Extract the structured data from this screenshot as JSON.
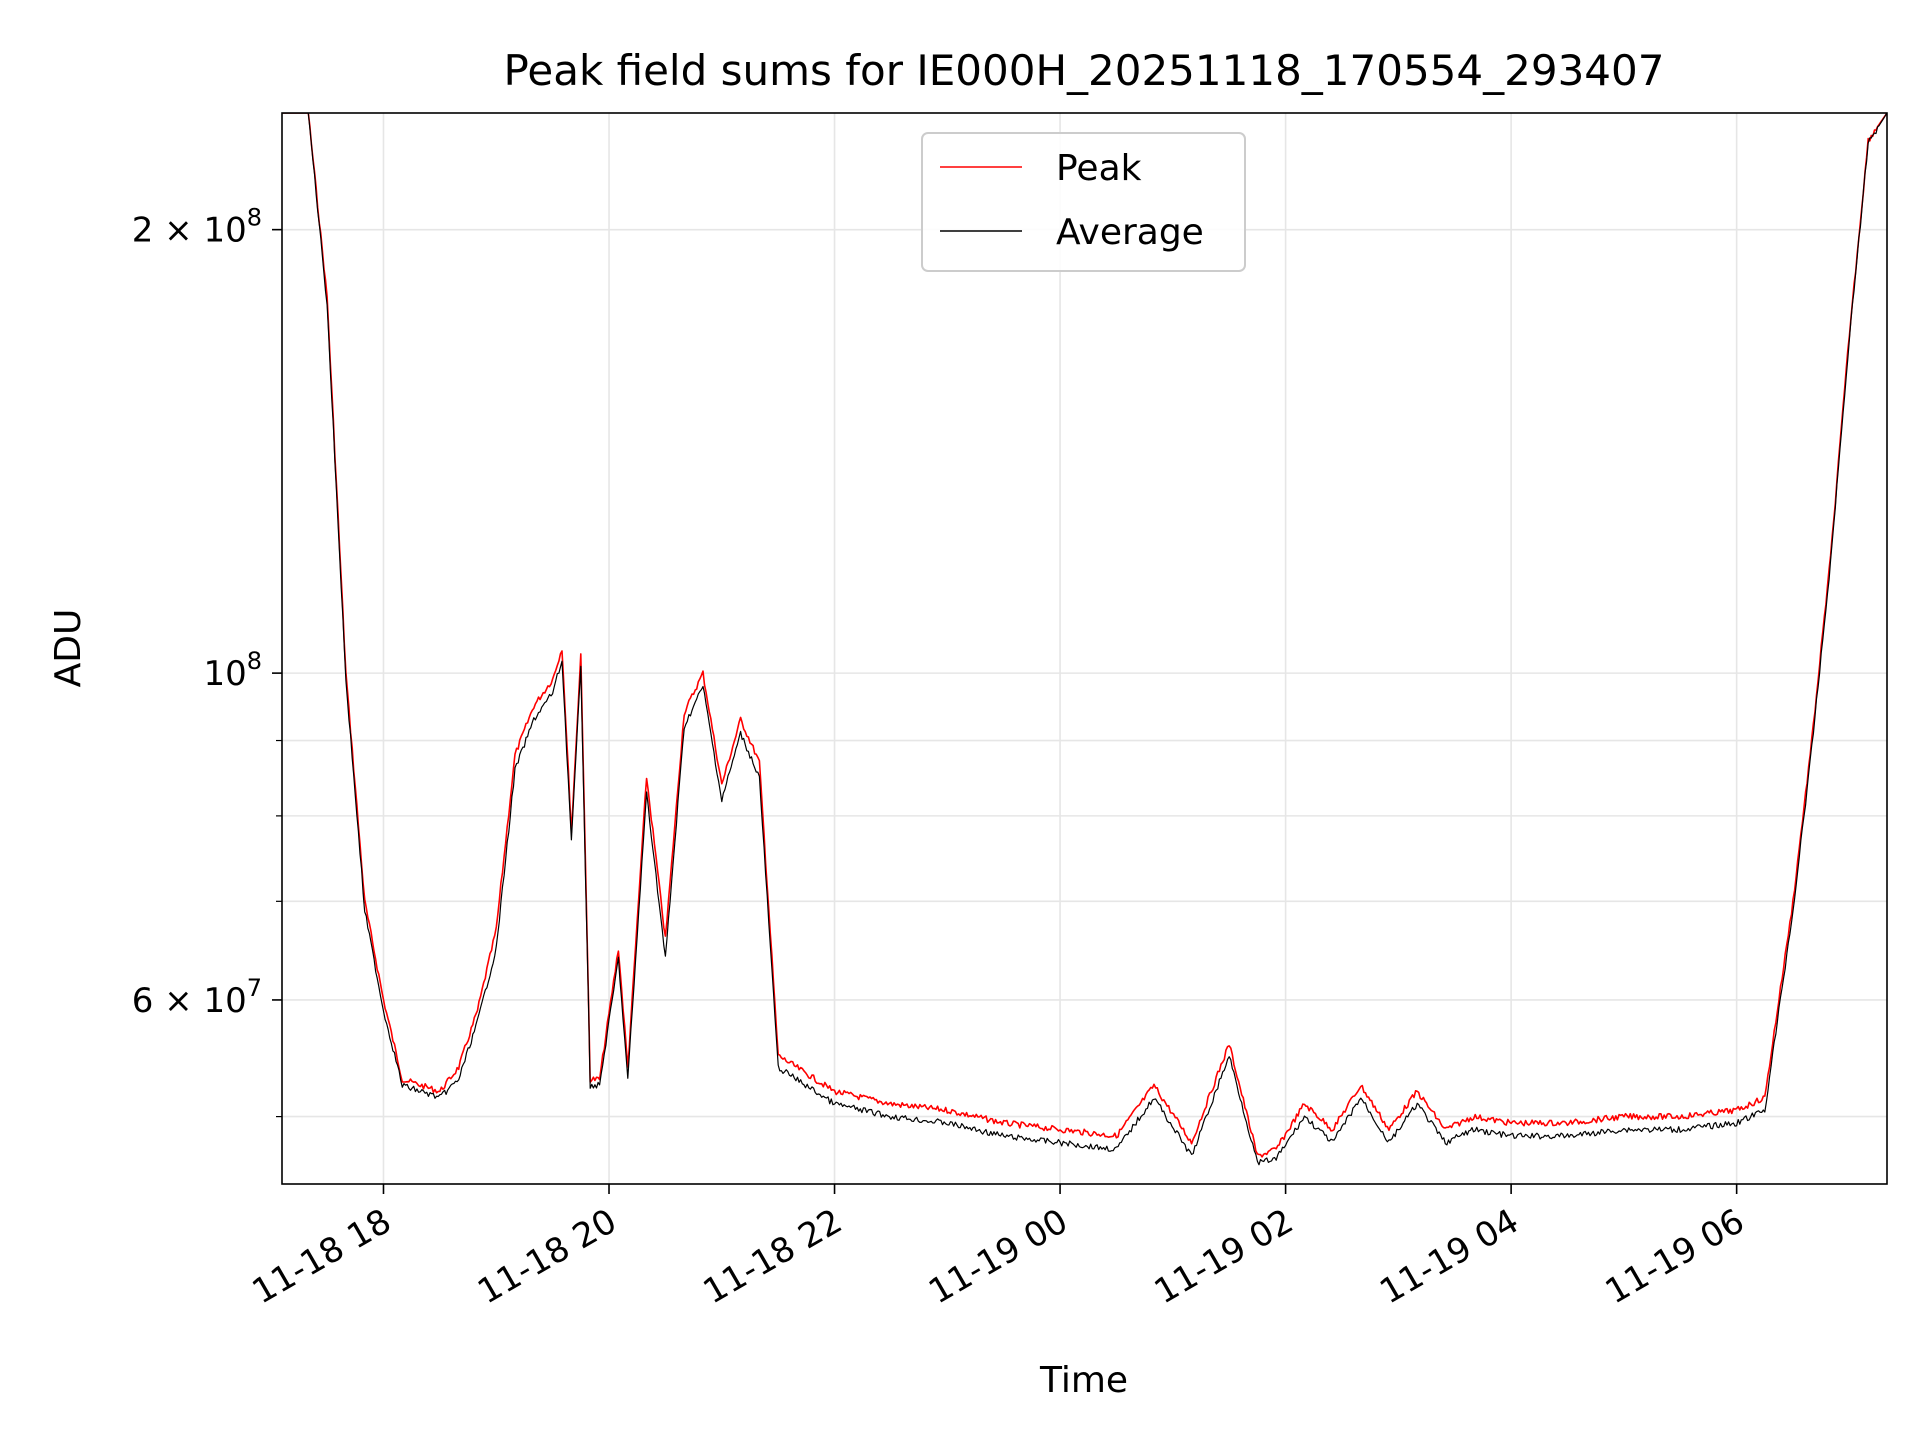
{
  "chart_data": {
    "type": "line",
    "title": "Peak field sums for IE000H_20251118_170554_293407",
    "xlabel": "Time",
    "ylabel": "ADU",
    "y_scale": "log",
    "ylim": [
      45000000,
      240000000
    ],
    "xlim": [
      "2025-11-18 17:06",
      "2025-11-19 07:20"
    ],
    "grid": true,
    "legend_position": "top-center",
    "x_ticks": [
      {
        "value": "2025-11-18 18:00",
        "label": "11-18 18"
      },
      {
        "value": "2025-11-18 20:00",
        "label": "11-18 20"
      },
      {
        "value": "2025-11-18 22:00",
        "label": "11-18 22"
      },
      {
        "value": "2025-11-19 00:00",
        "label": "11-19 00"
      },
      {
        "value": "2025-11-19 02:00",
        "label": "11-19 02"
      },
      {
        "value": "2025-11-19 04:00",
        "label": "11-19 04"
      },
      {
        "value": "2025-11-19 06:00",
        "label": "11-19 06"
      }
    ],
    "y_major_ticks": [
      {
        "value": 200000000,
        "base": "2 × 10",
        "exp": "8"
      },
      {
        "value": 100000000,
        "base": "10",
        "exp": "8"
      },
      {
        "value": 60000000,
        "base": "6 × 10",
        "exp": "7"
      }
    ],
    "y_minor_ticks": [
      50000000,
      70000000,
      80000000,
      90000000
    ],
    "series": [
      {
        "name": "Peak",
        "color": "#ff0000",
        "x": [
          "2025-11-18 17:06",
          "2025-11-18 17:20",
          "2025-11-18 17:30",
          "2025-11-18 17:40",
          "2025-11-18 17:50",
          "2025-11-18 18:00",
          "2025-11-18 18:10",
          "2025-11-18 18:30",
          "2025-11-18 18:40",
          "2025-11-18 18:50",
          "2025-11-18 19:00",
          "2025-11-18 19:10",
          "2025-11-18 19:20",
          "2025-11-18 19:30",
          "2025-11-18 19:35",
          "2025-11-18 19:40",
          "2025-11-18 19:45",
          "2025-11-18 19:50",
          "2025-11-18 19:55",
          "2025-11-18 20:05",
          "2025-11-18 20:10",
          "2025-11-18 20:20",
          "2025-11-18 20:30",
          "2025-11-18 20:40",
          "2025-11-18 20:50",
          "2025-11-18 21:00",
          "2025-11-18 21:10",
          "2025-11-18 21:20",
          "2025-11-18 21:30",
          "2025-11-18 22:00",
          "2025-11-18 22:30",
          "2025-11-18 23:00",
          "2025-11-18 23:30",
          "2025-11-19 00:00",
          "2025-11-19 00:30",
          "2025-11-19 00:50",
          "2025-11-19 01:10",
          "2025-11-19 01:30",
          "2025-11-19 01:45",
          "2025-11-19 01:55",
          "2025-11-19 02:10",
          "2025-11-19 02:25",
          "2025-11-19 02:40",
          "2025-11-19 02:55",
          "2025-11-19 03:10",
          "2025-11-19 03:25",
          "2025-11-19 03:40",
          "2025-11-19 04:00",
          "2025-11-19 04:30",
          "2025-11-19 05:00",
          "2025-11-19 05:30",
          "2025-11-19 06:00",
          "2025-11-19 06:15",
          "2025-11-19 06:30",
          "2025-11-19 06:40",
          "2025-11-19 06:50",
          "2025-11-19 07:00",
          "2025-11-19 07:10",
          "2025-11-19 07:20"
        ],
        "y": [
          240000000,
          240000000,
          180000000,
          100000000,
          70000000,
          60000000,
          53000000,
          52000000,
          54000000,
          59000000,
          67000000,
          88000000,
          95000000,
          99000000,
          104000000,
          78000000,
          103000000,
          53000000,
          53000000,
          65000000,
          54000000,
          85000000,
          66000000,
          94000000,
          100000000,
          84000000,
          93000000,
          87000000,
          55000000,
          52000000,
          51000000,
          50500000,
          49500000,
          49000000,
          48500000,
          52500000,
          48000000,
          56000000,
          47000000,
          47500000,
          51000000,
          49000000,
          52500000,
          49000000,
          52000000,
          49000000,
          50000000,
          49500000,
          49500000,
          50000000,
          50000000,
          50500000,
          51500000,
          70000000,
          90000000,
          120000000,
          170000000,
          230000000,
          240000000
        ]
      },
      {
        "name": "Average",
        "color": "#000000",
        "x": [
          "2025-11-18 17:06",
          "2025-11-18 17:20",
          "2025-11-18 17:30",
          "2025-11-18 17:40",
          "2025-11-18 17:50",
          "2025-11-18 18:00",
          "2025-11-18 18:10",
          "2025-11-18 18:30",
          "2025-11-18 18:40",
          "2025-11-18 18:50",
          "2025-11-18 19:00",
          "2025-11-18 19:10",
          "2025-11-18 19:20",
          "2025-11-18 19:30",
          "2025-11-18 19:35",
          "2025-11-18 19:40",
          "2025-11-18 19:45",
          "2025-11-18 19:50",
          "2025-11-18 19:55",
          "2025-11-18 20:05",
          "2025-11-18 20:10",
          "2025-11-18 20:20",
          "2025-11-18 20:30",
          "2025-11-18 20:40",
          "2025-11-18 20:50",
          "2025-11-18 21:00",
          "2025-11-18 21:10",
          "2025-11-18 21:20",
          "2025-11-18 21:30",
          "2025-11-18 22:00",
          "2025-11-18 22:30",
          "2025-11-18 23:00",
          "2025-11-18 23:30",
          "2025-11-19 00:00",
          "2025-11-19 00:30",
          "2025-11-19 00:50",
          "2025-11-19 01:10",
          "2025-11-19 01:30",
          "2025-11-19 01:45",
          "2025-11-19 01:55",
          "2025-11-19 02:10",
          "2025-11-19 02:25",
          "2025-11-19 02:40",
          "2025-11-19 02:55",
          "2025-11-19 03:10",
          "2025-11-19 03:25",
          "2025-11-19 03:40",
          "2025-11-19 04:00",
          "2025-11-19 04:30",
          "2025-11-19 05:00",
          "2025-11-19 05:30",
          "2025-11-19 06:00",
          "2025-11-19 06:15",
          "2025-11-19 06:30",
          "2025-11-19 06:40",
          "2025-11-19 06:50",
          "2025-11-19 07:00",
          "2025-11-19 07:10",
          "2025-11-19 07:20"
        ],
        "y": [
          240000000,
          240000000,
          178000000,
          99000000,
          69000000,
          59000000,
          52500000,
          51500000,
          53000000,
          58000000,
          65000000,
          86000000,
          93000000,
          97000000,
          102000000,
          77000000,
          101000000,
          52500000,
          52500000,
          64000000,
          53000000,
          83000000,
          64000000,
          92000000,
          98000000,
          82000000,
          91000000,
          85000000,
          54000000,
          51000000,
          50000000,
          49500000,
          48500000,
          48000000,
          47500000,
          51500000,
          47000000,
          55000000,
          46500000,
          46800000,
          50000000,
          48000000,
          51500000,
          48000000,
          51000000,
          48000000,
          49000000,
          48500000,
          48500000,
          49000000,
          49000000,
          49500000,
          50500000,
          69000000,
          89000000,
          119000000,
          169000000,
          229000000,
          240000000
        ]
      }
    ]
  }
}
